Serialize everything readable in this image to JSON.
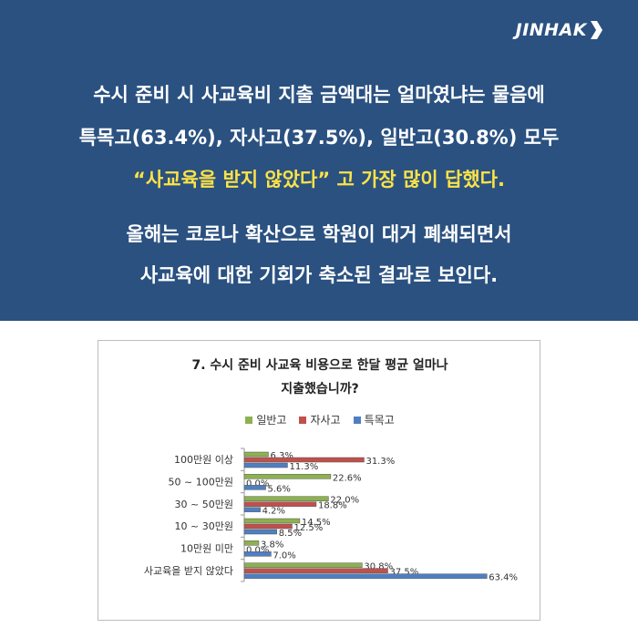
{
  "brand": {
    "logo_text": "JINHAK"
  },
  "headline": {
    "line1": "수시 준비 시 사교육비 지출 금액대는 얼마였냐는 물음에",
    "line2": "특목고(63.4%), 자사고(37.5%), 일반고(30.8%) 모두",
    "line3": "“사교육을 받지 않았다”  고 가장 많이 답했다.",
    "line4": "올해는 코로나 확산으로 학원이 대거 폐쇄되면서",
    "line5": "사교육에 대한 기회가 축소된 결과로 보인다."
  },
  "colors": {
    "banner_bg": "#2a5180",
    "accent_text": "#fbe347",
    "series_general": "#8db150",
    "series_autonomous": "#c0504d",
    "series_special": "#4f7fc1"
  },
  "chart_data": {
    "type": "bar",
    "orientation": "horizontal",
    "title_line1": "7. 수시 준비 사교육 비용으로 한달 평균 얼마나",
    "title_line2": "지출했습니까?",
    "categories": [
      "100만원 이상",
      "50 ~ 100만원",
      "30 ~ 50만원",
      "10 ~ 30만원",
      "10만원 미만",
      "사교육을 받지 않았다"
    ],
    "series": [
      {
        "name": "일반고",
        "values": [
          6.3,
          22.6,
          22.0,
          14.5,
          3.8,
          30.8
        ],
        "labels": [
          "6.3%",
          "22.6%",
          "22.0%",
          "14.5%",
          "3.8%",
          "30.8%"
        ]
      },
      {
        "name": "자사고",
        "values": [
          31.3,
          0.0,
          18.8,
          12.5,
          0.0,
          37.5
        ],
        "labels": [
          "31.3%",
          "0.0%",
          "18.8%",
          "12.5%",
          "0.0%",
          "37.5%"
        ]
      },
      {
        "name": "특목고",
        "values": [
          11.3,
          5.6,
          4.2,
          8.5,
          7.0,
          63.4
        ],
        "labels": [
          "11.3%",
          "5.6%",
          "4.2%",
          "8.5%",
          "7.0%",
          "63.4%"
        ]
      }
    ],
    "xlim": [
      0,
      70
    ],
    "legend_position": "top-center",
    "grid": false
  }
}
